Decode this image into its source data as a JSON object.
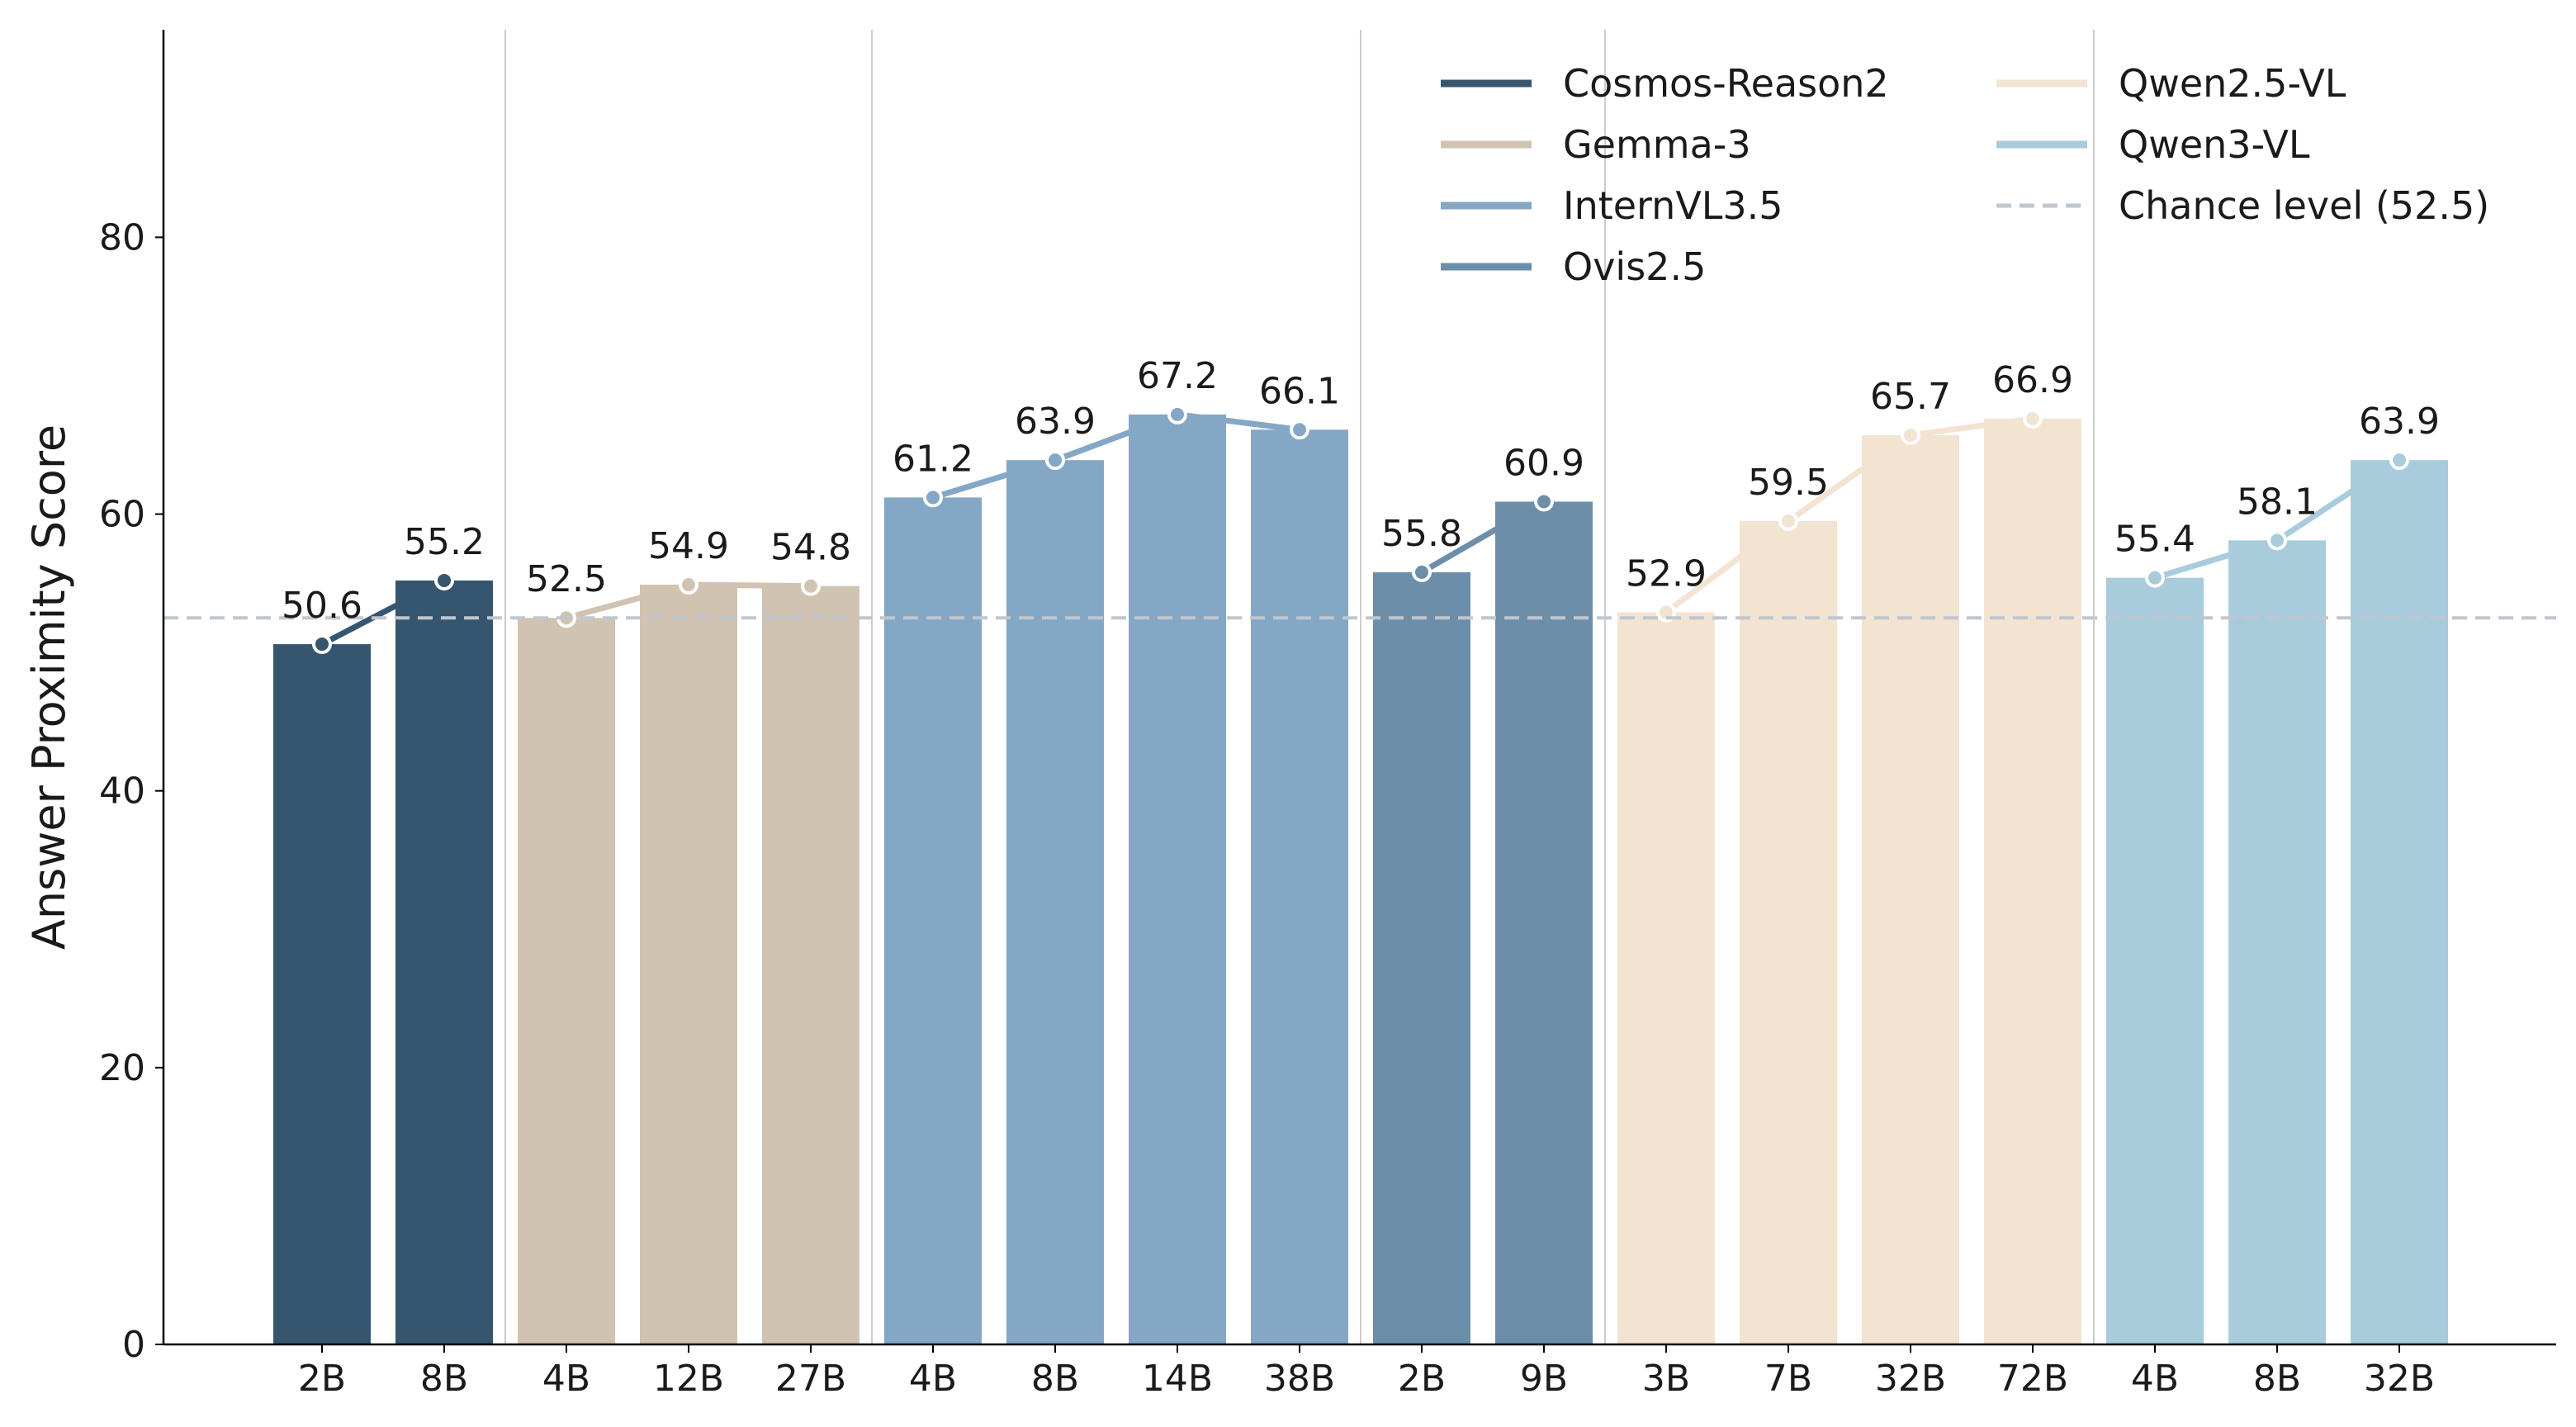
{
  "chart_data": {
    "type": "bar",
    "title": "",
    "xlabel": "",
    "ylabel": "Answer Proximity Score",
    "ylim": [
      0,
      95
    ],
    "yticks": [
      0,
      20,
      40,
      60,
      80
    ],
    "grid": false,
    "legend_position": "top-right",
    "series": [
      {
        "name": "Cosmos-Reason2",
        "color": "#36566f",
        "categories": [
          "2B",
          "8B"
        ],
        "values": [
          50.6,
          55.2
        ]
      },
      {
        "name": "Gemma-3",
        "color": "#d1c3b2",
        "categories": [
          "4B",
          "12B",
          "27B"
        ],
        "values": [
          52.5,
          54.9,
          54.8
        ]
      },
      {
        "name": "InternVL3.5",
        "color": "#84a7c6",
        "categories": [
          "4B",
          "8B",
          "14B",
          "38B"
        ],
        "values": [
          61.2,
          63.9,
          67.2,
          66.1
        ]
      },
      {
        "name": "Ovis2.5",
        "color": "#6d8ea9",
        "categories": [
          "2B",
          "9B"
        ],
        "values": [
          55.8,
          60.9
        ]
      },
      {
        "name": "Qwen2.5-VL",
        "color": "#f3e3d1",
        "categories": [
          "3B",
          "7B",
          "32B",
          "72B"
        ],
        "values": [
          52.9,
          59.5,
          65.7,
          66.9
        ]
      },
      {
        "name": "Qwen3-VL",
        "color": "#a8ccdc",
        "categories": [
          "4B",
          "8B",
          "32B"
        ],
        "values": [
          55.4,
          58.1,
          63.9
        ]
      }
    ],
    "reference_line": {
      "label": "Chance level (52.5)",
      "value": 52.5,
      "color": "#bfc6cf"
    }
  }
}
